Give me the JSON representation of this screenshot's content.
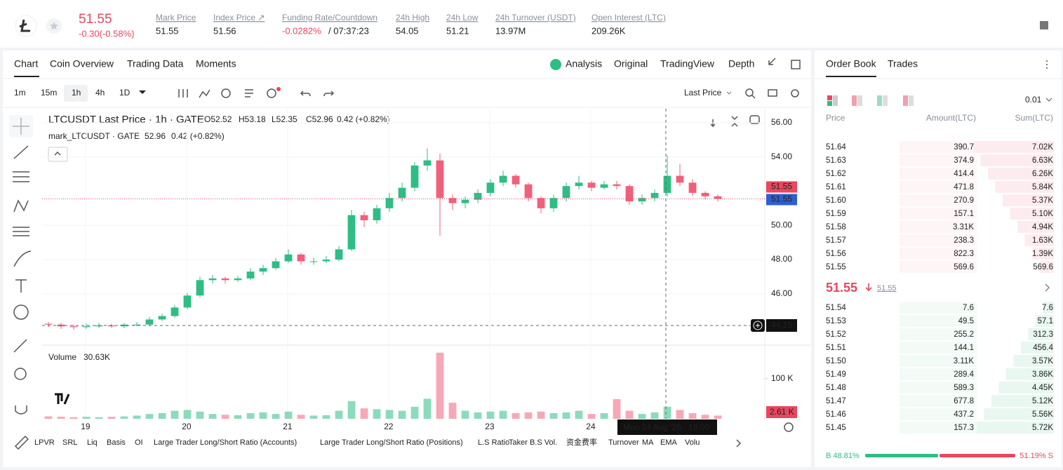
{
  "header": {
    "price": "51.55",
    "change": "-0.30(-0.58%)",
    "stats": [
      {
        "label": "Mark Price",
        "value": "51.55"
      },
      {
        "label": "Index Price ↗",
        "value": "51.56"
      },
      {
        "label": "Funding Rate/Countdown",
        "value": "-0.0282%",
        "extra": "/ 07:37:23"
      },
      {
        "label": "24h High",
        "value": "54.05"
      },
      {
        "label": "24h Low",
        "value": "51.21"
      },
      {
        "label": "24h Turnover (USDT)",
        "value": "13.97M"
      },
      {
        "label": "Open Interest (LTC)",
        "value": "209.26K"
      }
    ]
  },
  "tabs": [
    "Chart",
    "Coin Overview",
    "Trading Data",
    "Moments"
  ],
  "views": [
    "Analysis",
    "Original",
    "TradingView",
    "Depth"
  ],
  "intervals": [
    "1m",
    "15m",
    "1h",
    "4h",
    "1D"
  ],
  "price_source": "Last Price",
  "legend": {
    "main": "LTCUSDT Last Price · 1h · GATE",
    "o": "O52.52",
    "h": "H53.18",
    "l": "L52.35",
    "c": "C52.96",
    "chg": "0.42 (+0.82%)",
    "mark": "mark_LTCUSDT · GATE",
    "mark_value": "52.96",
    "mark_chg": "0.42 (+0.82%)"
  },
  "volume_label": "Volume",
  "volume_value": "30.63K",
  "volume_last_label": "2.61 K",
  "crosshair_time": "Mon 24 Aug '26   18:00",
  "indicators": [
    "LPVR",
    "SRL",
    "Liq",
    "Basis",
    "OI",
    "Large Trader Long/Short Ratio (Accounts)",
    "Large Trader Long/Short Ratio (Positions)",
    "L.S Ratio",
    "Taker B.S Vol.",
    "资金费率",
    "Turnover",
    "MA",
    "EMA",
    "Volu"
  ],
  "chart_data": {
    "type": "candlestick",
    "xlim": [
      -0.5,
      56.72
    ],
    "xticks": [
      {
        "value": 2.94,
        "label": "19"
      },
      {
        "value": 10.94,
        "label": "20"
      },
      {
        "value": 18.94,
        "label": "21"
      },
      {
        "value": 26.94,
        "label": "22"
      },
      {
        "value": 34.94,
        "label": "23"
      },
      {
        "value": 42.94,
        "label": "24"
      }
    ],
    "ylim": [
      43,
      56.82
    ],
    "yticks": [
      {
        "value": 46,
        "label": "46.00"
      },
      {
        "value": 48,
        "label": "48.00"
      },
      {
        "value": 50,
        "label": "50.00"
      },
      {
        "value": 54,
        "label": "54.00"
      },
      {
        "value": 56,
        "label": "56.00"
      }
    ],
    "up_color": "#2ebd85",
    "down_color": "#f0607a",
    "last_price": {
      "value": 51.55,
      "label": "51.55"
    },
    "mark_price": {
      "value": 51.55,
      "label": "51.55"
    },
    "crosshair_price": {
      "value": 44.15,
      "label": "44.15"
    },
    "candles": [
      [
        44.25,
        44.35,
        44.05,
        44.2
      ],
      [
        44.2,
        44.3,
        43.95,
        44.1
      ],
      [
        44.1,
        44.2,
        43.9,
        44.05
      ],
      [
        44.05,
        44.25,
        43.95,
        44.1
      ],
      [
        44.1,
        44.3,
        44.0,
        44.15
      ],
      [
        44.15,
        44.25,
        44.0,
        44.1
      ],
      [
        44.1,
        44.3,
        44.0,
        44.2
      ],
      [
        44.2,
        44.35,
        44.1,
        44.2
      ],
      [
        44.2,
        44.65,
        44.1,
        44.5
      ],
      [
        44.5,
        44.85,
        44.4,
        44.7
      ],
      [
        44.7,
        45.35,
        44.6,
        45.2
      ],
      [
        45.2,
        46.05,
        45.1,
        45.9
      ],
      [
        45.9,
        47.0,
        45.8,
        46.8
      ],
      [
        46.8,
        47.1,
        46.6,
        46.9
      ],
      [
        46.9,
        47.0,
        46.6,
        46.8
      ],
      [
        46.8,
        47.05,
        46.7,
        46.9
      ],
      [
        46.9,
        47.5,
        46.8,
        47.3
      ],
      [
        47.3,
        47.7,
        47.1,
        47.5
      ],
      [
        47.5,
        48.1,
        47.4,
        47.9
      ],
      [
        47.9,
        48.6,
        47.8,
        48.3
      ],
      [
        48.3,
        48.4,
        47.7,
        47.9
      ],
      [
        47.9,
        48.1,
        47.7,
        47.9
      ],
      [
        47.9,
        48.2,
        47.8,
        48.0
      ],
      [
        48.0,
        48.8,
        47.9,
        48.6
      ],
      [
        48.6,
        50.9,
        48.5,
        50.6
      ],
      [
        50.6,
        50.8,
        49.9,
        50.3
      ],
      [
        50.3,
        51.2,
        50.1,
        51.0
      ],
      [
        51.0,
        51.9,
        50.8,
        51.6
      ],
      [
        51.6,
        52.5,
        51.4,
        52.2
      ],
      [
        52.2,
        53.7,
        52.0,
        53.5
      ],
      [
        53.5,
        54.5,
        53.2,
        53.8
      ],
      [
        53.8,
        54.2,
        49.4,
        51.6
      ],
      [
        51.6,
        51.8,
        50.9,
        51.3
      ],
      [
        51.3,
        51.7,
        51.0,
        51.5
      ],
      [
        51.5,
        52.1,
        51.3,
        51.9
      ],
      [
        51.9,
        52.7,
        51.7,
        52.5
      ],
      [
        52.5,
        53.2,
        52.3,
        52.9
      ],
      [
        52.9,
        53.0,
        52.2,
        52.4
      ],
      [
        52.4,
        52.5,
        51.4,
        51.6
      ],
      [
        51.6,
        51.7,
        50.7,
        51.0
      ],
      [
        51.0,
        51.8,
        50.8,
        51.6
      ],
      [
        51.6,
        52.5,
        51.4,
        52.3
      ],
      [
        52.3,
        52.9,
        52.1,
        52.5
      ],
      [
        52.5,
        52.6,
        52.0,
        52.2
      ],
      [
        52.2,
        52.6,
        52.1,
        52.4
      ],
      [
        52.4,
        52.6,
        52.1,
        52.3
      ],
      [
        52.3,
        52.4,
        51.2,
        51.4
      ],
      [
        51.4,
        51.8,
        51.2,
        51.6
      ],
      [
        51.6,
        52.1,
        51.4,
        51.9
      ],
      [
        51.9,
        54.1,
        51.7,
        52.9
      ],
      [
        52.9,
        53.6,
        52.3,
        52.5
      ],
      [
        52.5,
        52.7,
        51.7,
        51.9
      ],
      [
        51.9,
        52.0,
        51.5,
        51.7
      ],
      [
        51.7,
        51.8,
        51.4,
        51.55
      ]
    ],
    "volumes": [
      6000,
      5000,
      4000,
      5000,
      4000,
      5000,
      6000,
      8000,
      12000,
      14000,
      20000,
      22000,
      18000,
      12000,
      10000,
      9000,
      14000,
      16000,
      12000,
      18000,
      10000,
      8000,
      9000,
      20000,
      44000,
      26000,
      24000,
      22000,
      20000,
      30000,
      50000,
      165000,
      40000,
      20000,
      16000,
      18000,
      20000,
      14000,
      16000,
      18000,
      14000,
      16000,
      20000,
      12000,
      14000,
      49000,
      20000,
      12000,
      16000,
      30000,
      22000,
      14000,
      10000,
      8000
    ],
    "vlim": [
      0,
      175000
    ],
    "vticks": [
      {
        "value": 100000,
        "label": "100 K"
      }
    ]
  },
  "order_book": {
    "tabs": [
      "Order Book",
      "Trades"
    ],
    "precision": "0.01",
    "columns": [
      "Price",
      "Amount(LTC)",
      "Sum(LTC)"
    ],
    "asks": [
      [
        "51.64",
        "390.7",
        "7.02K"
      ],
      [
        "51.63",
        "374.9",
        "6.63K"
      ],
      [
        "51.62",
        "414.4",
        "6.26K"
      ],
      [
        "51.61",
        "471.8",
        "5.84K"
      ],
      [
        "51.60",
        "270.9",
        "5.37K"
      ],
      [
        "51.59",
        "157.1",
        "5.10K"
      ],
      [
        "51.58",
        "3.31K",
        "4.94K"
      ],
      [
        "51.57",
        "238.3",
        "1.63K"
      ],
      [
        "51.56",
        "822.3",
        "1.39K"
      ],
      [
        "51.55",
        "569.6",
        "569.6"
      ]
    ],
    "last": "51.55",
    "last_mark": "51.55",
    "bids": [
      [
        "51.54",
        "7.6",
        "7.6"
      ],
      [
        "51.53",
        "49.5",
        "57.1"
      ],
      [
        "51.52",
        "255.2",
        "312.3"
      ],
      [
        "51.51",
        "144.1",
        "456.4"
      ],
      [
        "51.50",
        "3.11K",
        "3.57K"
      ],
      [
        "51.49",
        "289.4",
        "3.86K"
      ],
      [
        "51.48",
        "589.3",
        "4.45K"
      ],
      [
        "51.47",
        "677.8",
        "5.12K"
      ],
      [
        "51.46",
        "437.2",
        "5.56K"
      ],
      [
        "51.45",
        "157.3",
        "5.72K"
      ]
    ],
    "buy_ratio": "B 48.81%",
    "sell_ratio": "51.19% S"
  }
}
